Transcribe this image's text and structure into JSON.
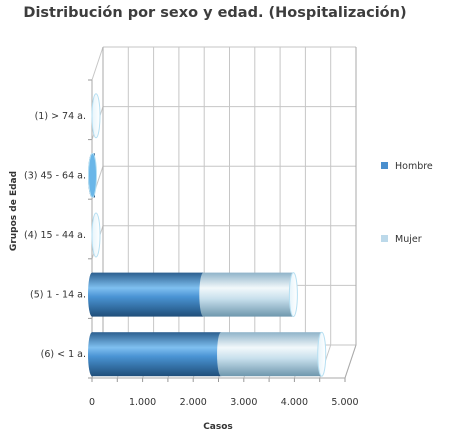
{
  "chart_data": {
    "type": "bar",
    "orientation": "horizontal",
    "stacked": true,
    "title": "Distribución por sexo y edad. (Hospitalización)",
    "xlabel": "Casos",
    "ylabel": "Grupos de Edad",
    "categories": [
      "(1) > 74 a.",
      "(3) 45 - 64 a.",
      "(4) 15 - 44 a.",
      "(5) 1 - 14 a.",
      "(6) < 1 a."
    ],
    "series": [
      {
        "name": "Hombre",
        "values": [
          0,
          10,
          0,
          2200,
          2550
        ],
        "color": "#4a8fce"
      },
      {
        "name": "Mujer",
        "values": [
          0,
          0,
          0,
          1780,
          1990
        ],
        "color": "#bcd9ea"
      }
    ],
    "xlim": [
      0,
      5000
    ],
    "xticks": [
      0,
      500,
      1000,
      1500,
      2000,
      2500,
      3000,
      3500,
      4000,
      4500,
      5000
    ],
    "xtick_labels": [
      "0",
      "",
      "1.000",
      "",
      "2.000",
      "",
      "3.000",
      "",
      "4.000",
      "",
      "5.000"
    ],
    "grid": true,
    "legend_position": "right"
  }
}
